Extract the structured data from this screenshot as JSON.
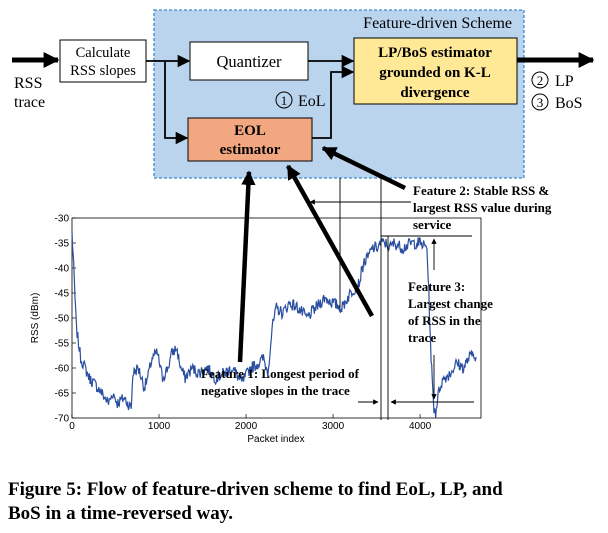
{
  "scheme": {
    "title": "Feature-driven Scheme",
    "input_label_1": "RSS",
    "input_label_2": "trace",
    "calc_box": [
      "Calculate",
      "RSS slopes"
    ],
    "quantizer": "Quantizer",
    "eol_box": [
      "EOL",
      "estimator"
    ],
    "lpbos_box": [
      "LP/BoS estimator",
      "grounded on K-L",
      "divergence"
    ],
    "marker_1": "1",
    "marker_1_label": "EoL",
    "marker_2": "2",
    "marker_2_label": "LP",
    "marker_3": "3",
    "marker_3_label": "BoS",
    "colors": {
      "scheme_bg": "#bad4ee",
      "scheme_border": "#3a8ad0",
      "eol_fill": "#f3a781",
      "lpbos_fill": "#ffe896",
      "trace": "#2b4fa0"
    }
  },
  "annotations": {
    "feature1": [
      "Feature 1: Longest period of",
      "negative slopes in the trace"
    ],
    "feature2": [
      "Feature 2: Stable RSS &",
      "largest RSS value during",
      "service"
    ],
    "feature3": [
      "Feature 3:",
      "Largest change",
      "of RSS in the",
      "trace"
    ]
  },
  "chart_data": {
    "type": "line",
    "xlabel": "Packet index",
    "ylabel": "RSS (dBm)",
    "xlim": [
      0,
      4700
    ],
    "ylim": [
      -70,
      -30
    ],
    "xticks": [
      "0",
      "1000",
      "2000",
      "3000",
      "4000"
    ],
    "yticks": [
      "-30",
      "-35",
      "-40",
      "-45",
      "-50",
      "-55",
      "-60",
      "-65",
      "-70"
    ],
    "series": [
      {
        "x": [
          0,
          20,
          50,
          100,
          150,
          200,
          300,
          380,
          420,
          470,
          520,
          600,
          680,
          700,
          760,
          800,
          830,
          870,
          920,
          980,
          1040,
          1100,
          1150,
          1200,
          1250,
          1300,
          1380,
          1450,
          1550,
          1650,
          1750,
          1850,
          1950,
          2050,
          2150,
          2200,
          2250,
          2300,
          2350,
          2420,
          2500,
          2600,
          2700,
          2800,
          2900,
          3000,
          3100,
          3200,
          3300,
          3350,
          3400,
          3450,
          3500,
          3550,
          3600,
          3650,
          3700,
          3800,
          3900,
          4000,
          4080,
          4100,
          4120,
          4140,
          4160,
          4180,
          4200,
          4240,
          4280,
          4350,
          4420,
          4500,
          4560,
          4620,
          4650
        ],
        "y": [
          -33,
          -40,
          -52,
          -58,
          -60,
          -62,
          -64,
          -66,
          -67,
          -65,
          -67,
          -66,
          -68,
          -61,
          -60,
          -62,
          -64,
          -62,
          -58,
          -57,
          -62,
          -60,
          -57,
          -56,
          -60,
          -62,
          -60,
          -61,
          -60,
          -62,
          -61,
          -60,
          -63,
          -60,
          -59,
          -58,
          -61,
          -52,
          -48,
          -49,
          -47,
          -48,
          -50,
          -48,
          -46,
          -47,
          -48,
          -45,
          -43,
          -39,
          -38,
          -36,
          -36,
          -35,
          -35,
          -36,
          -35,
          -36,
          -35,
          -35,
          -36,
          -45,
          -55,
          -63,
          -68,
          -69,
          -66,
          -63,
          -62,
          -61,
          -59,
          -60,
          -58,
          -57,
          -58
        ]
      }
    ]
  },
  "caption": [
    "Figure 5: Flow of feature-driven scheme to find EoL, LP, and",
    "BoS in a time-reversed way."
  ]
}
